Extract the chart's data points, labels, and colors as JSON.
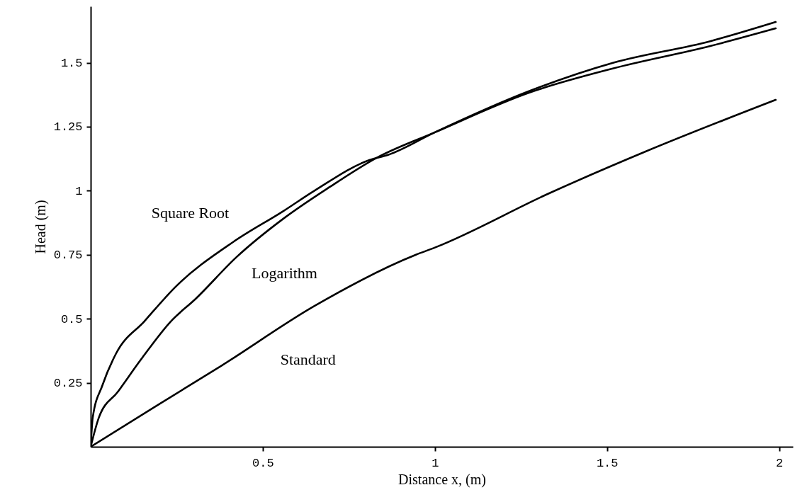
{
  "chart_data": {
    "type": "line",
    "xlabel": "Distance x, (m)",
    "ylabel": "Head (m)",
    "xlim": [
      0,
      2.04
    ],
    "ylim": [
      0,
      1.72
    ],
    "xticks": [
      0.5,
      1,
      1.5,
      2
    ],
    "yticks": [
      0.25,
      0.5,
      0.75,
      1,
      1.25,
      1.5
    ],
    "grid": false,
    "legend": false,
    "series": [
      {
        "name": "Square Root",
        "color": "#000000",
        "x": [
          0,
          0.006,
          0.034,
          0.074,
          0.156,
          0.246,
          0.414,
          0.559,
          0.65,
          0.81,
          0.864,
          1.0,
          1.276,
          1.519,
          1.8,
          1.99
        ],
        "values": [
          0,
          0.115,
          0.24,
          0.365,
          0.49,
          0.624,
          0.8,
          0.92,
          1.0,
          1.12,
          1.14,
          1.228,
          1.39,
          1.5,
          1.584,
          1.659
        ]
      },
      {
        "name": "Logarithm",
        "color": "#000000",
        "x": [
          0,
          0.024,
          0.079,
          0.151,
          0.233,
          0.305,
          0.423,
          0.559,
          0.695,
          0.83,
          1.0,
          1.276,
          1.519,
          1.8,
          1.99
        ],
        "values": [
          0,
          0.115,
          0.215,
          0.35,
          0.49,
          0.578,
          0.74,
          0.89,
          1.015,
          1.128,
          1.228,
          1.384,
          1.478,
          1.565,
          1.634
        ]
      },
      {
        "name": "Standard",
        "color": "#000000",
        "x": [
          0,
          0.197,
          0.378,
          0.65,
          0.945,
          1.0,
          1.332,
          1.612,
          1.99
        ],
        "values": [
          0,
          0.165,
          0.315,
          0.55,
          0.75,
          0.778,
          0.99,
          1.153,
          1.355
        ]
      }
    ]
  }
}
